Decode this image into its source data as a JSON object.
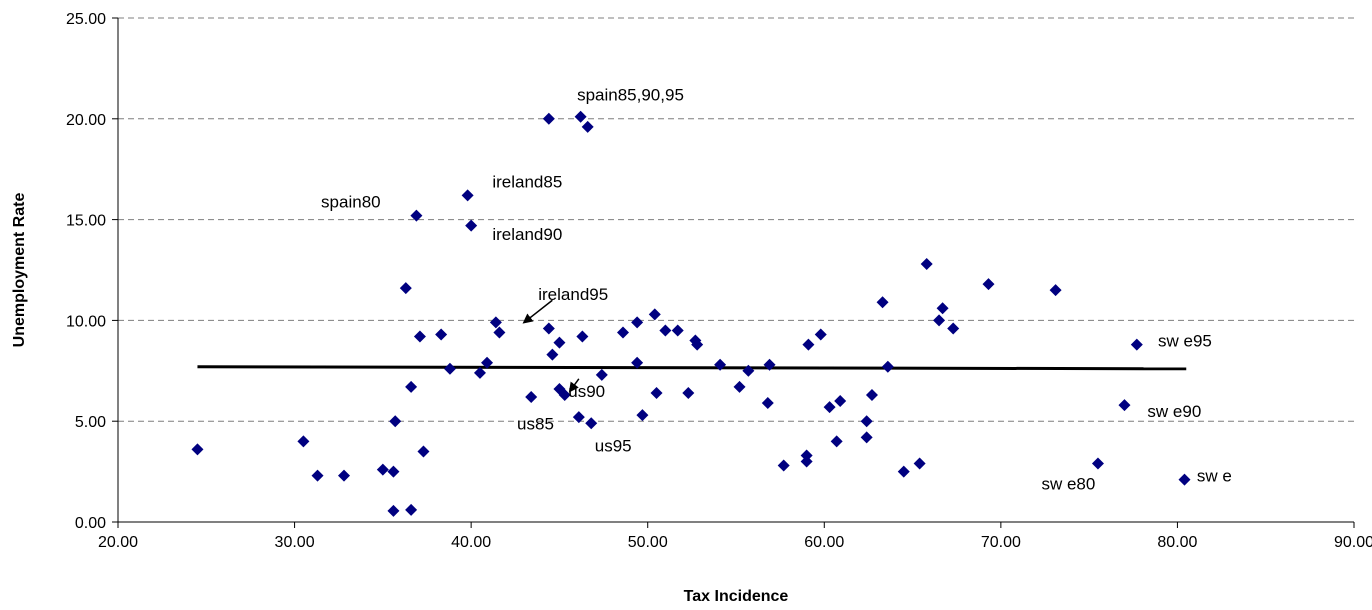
{
  "chart_data": {
    "type": "scatter",
    "title": "",
    "xlabel": "Tax Incidence",
    "ylabel": "Unemployment Rate",
    "xlim": [
      20,
      90
    ],
    "ylim": [
      0,
      25
    ],
    "xticks": [
      "20.00",
      "30.00",
      "40.00",
      "50.00",
      "60.00",
      "70.00",
      "80.00",
      "90.00"
    ],
    "yticks": [
      "0.00",
      "5.00",
      "10.00",
      "15.00",
      "20.00",
      "25.00"
    ],
    "grid": "horizontal dashed",
    "point_color": "#000080",
    "trendline": {
      "x": [
        24.5,
        80.5
      ],
      "y": [
        7.7,
        7.6
      ]
    },
    "points": [
      [
        24.5,
        3.6
      ],
      [
        30.5,
        4.0
      ],
      [
        31.3,
        2.3
      ],
      [
        32.8,
        2.3
      ],
      [
        35.0,
        2.6
      ],
      [
        35.6,
        2.5
      ],
      [
        35.7,
        5.0
      ],
      [
        35.6,
        0.55
      ],
      [
        36.6,
        0.6
      ],
      [
        36.3,
        11.6
      ],
      [
        36.6,
        6.7
      ],
      [
        37.1,
        9.2
      ],
      [
        37.3,
        3.5
      ],
      [
        36.9,
        15.2
      ],
      [
        38.3,
        9.3
      ],
      [
        38.8,
        7.6
      ],
      [
        39.8,
        16.2
      ],
      [
        40.0,
        14.7
      ],
      [
        40.5,
        7.4
      ],
      [
        40.9,
        7.9
      ],
      [
        41.4,
        9.9
      ],
      [
        41.6,
        9.4
      ],
      [
        43.4,
        6.2
      ],
      [
        44.4,
        9.6
      ],
      [
        44.6,
        8.3
      ],
      [
        44.4,
        20.0
      ],
      [
        45.0,
        8.9
      ],
      [
        45.0,
        6.6
      ],
      [
        45.3,
        6.3
      ],
      [
        46.2,
        20.1
      ],
      [
        46.6,
        19.6
      ],
      [
        46.3,
        9.2
      ],
      [
        46.1,
        5.2
      ],
      [
        46.8,
        4.9
      ],
      [
        47.4,
        7.3
      ],
      [
        48.6,
        9.4
      ],
      [
        49.4,
        9.9
      ],
      [
        49.4,
        7.9
      ],
      [
        49.7,
        5.3
      ],
      [
        50.4,
        10.3
      ],
      [
        50.5,
        6.4
      ],
      [
        51.0,
        9.5
      ],
      [
        51.7,
        9.5
      ],
      [
        52.3,
        6.4
      ],
      [
        52.7,
        9.0
      ],
      [
        52.8,
        8.8
      ],
      [
        54.1,
        7.8
      ],
      [
        55.2,
        6.7
      ],
      [
        55.7,
        7.5
      ],
      [
        56.8,
        5.9
      ],
      [
        56.9,
        7.8
      ],
      [
        57.7,
        2.8
      ],
      [
        59.0,
        3.3
      ],
      [
        59.0,
        3.0
      ],
      [
        59.1,
        8.8
      ],
      [
        59.8,
        9.3
      ],
      [
        60.3,
        5.7
      ],
      [
        60.7,
        4.0
      ],
      [
        60.9,
        6.0
      ],
      [
        62.4,
        5.0
      ],
      [
        62.4,
        4.2
      ],
      [
        62.7,
        6.3
      ],
      [
        63.3,
        10.9
      ],
      [
        63.6,
        7.7
      ],
      [
        64.5,
        2.5
      ],
      [
        65.4,
        2.9
      ],
      [
        65.8,
        12.8
      ],
      [
        66.5,
        10.0
      ],
      [
        66.7,
        10.6
      ],
      [
        67.3,
        9.6
      ],
      [
        69.3,
        11.8
      ],
      [
        73.1,
        11.5
      ],
      [
        75.5,
        2.9
      ],
      [
        77.0,
        5.8
      ],
      [
        77.7,
        8.8
      ],
      [
        80.4,
        2.1
      ]
    ],
    "annotations": [
      {
        "text": "spain85,90,95",
        "x": 46.0,
        "y": 20.9,
        "anchor": "start"
      },
      {
        "text": "ireland85",
        "x": 41.2,
        "y": 16.6,
        "anchor": "start"
      },
      {
        "text": "spain80",
        "x": 31.5,
        "y": 15.6,
        "anchor": "start"
      },
      {
        "text": "ireland90",
        "x": 41.2,
        "y": 14.0,
        "anchor": "start"
      },
      {
        "text": "ireland95",
        "x": 43.8,
        "y": 11.0,
        "anchor": "start"
      },
      {
        "text": "us90",
        "x": 45.5,
        "y": 6.2,
        "anchor": "start"
      },
      {
        "text": "us85",
        "x": 42.6,
        "y": 4.6,
        "anchor": "start"
      },
      {
        "text": "us95",
        "x": 47.0,
        "y": 3.5,
        "anchor": "start"
      },
      {
        "text": "sw e95",
        "x": 78.9,
        "y": 8.7,
        "anchor": "start"
      },
      {
        "text": "sw e90",
        "x": 78.3,
        "y": 5.2,
        "anchor": "start"
      },
      {
        "text": "sw e80",
        "x": 72.3,
        "y": 1.6,
        "anchor": "start"
      },
      {
        "text": "sw e",
        "x": 81.1,
        "y": 2.0,
        "anchor": "start"
      }
    ],
    "arrows": [
      {
        "from": [
          44.6,
          11.0
        ],
        "to": [
          43.0,
          9.9
        ]
      },
      {
        "from": [
          46.1,
          7.1
        ],
        "to": [
          45.6,
          6.5
        ]
      }
    ]
  }
}
